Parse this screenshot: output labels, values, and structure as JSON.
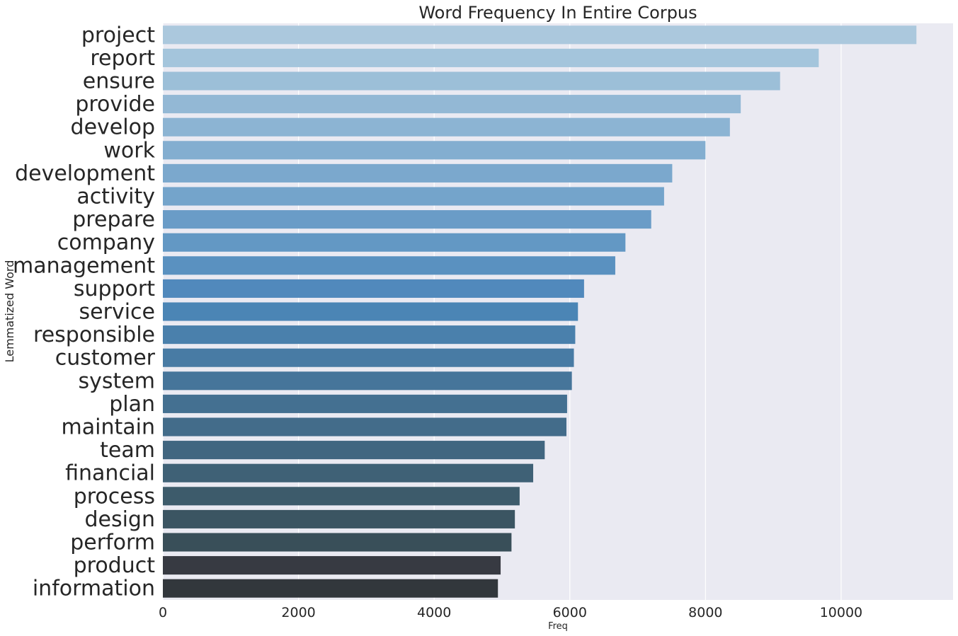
{
  "chart_data": {
    "type": "bar",
    "orientation": "horizontal",
    "title": "Word Frequency In Entire Corpus",
    "xlabel": "Freq",
    "ylabel": "Lemmatized Word",
    "xlim": [
      0,
      11650
    ],
    "xticks": [
      0,
      2000,
      4000,
      6000,
      8000,
      10000
    ],
    "grid": true,
    "categories": [
      "project",
      "report",
      "ensure",
      "provide",
      "develop",
      "work",
      "development",
      "activity",
      "prepare",
      "company",
      "management",
      "support",
      "service",
      "responsible",
      "customer",
      "system",
      "plan",
      "maintain",
      "team",
      "financial",
      "process",
      "design",
      "perform",
      "product",
      "information"
    ],
    "values": [
      11110,
      9670,
      9100,
      8520,
      8360,
      8000,
      7510,
      7390,
      7200,
      6820,
      6670,
      6210,
      6120,
      6080,
      6060,
      6030,
      5960,
      5950,
      5630,
      5460,
      5260,
      5190,
      5140,
      4980,
      4940
    ],
    "colors": [
      "#abc8dd",
      "#a4c5dc",
      "#9cbfd8",
      "#93b8d5",
      "#8cb4d3",
      "#83aed0",
      "#7ba8cd",
      "#74a4cb",
      "#6a9cc7",
      "#6398c4",
      "#5a91c0",
      "#5189bc",
      "#4b85b5",
      "#4a80ac",
      "#487ba4",
      "#46759a",
      "#447091",
      "#436c8a",
      "#416680",
      "#3f6176",
      "#3d5b6b",
      "#3b5562",
      "#394f59",
      "#373a42",
      "#32373c"
    ]
  }
}
